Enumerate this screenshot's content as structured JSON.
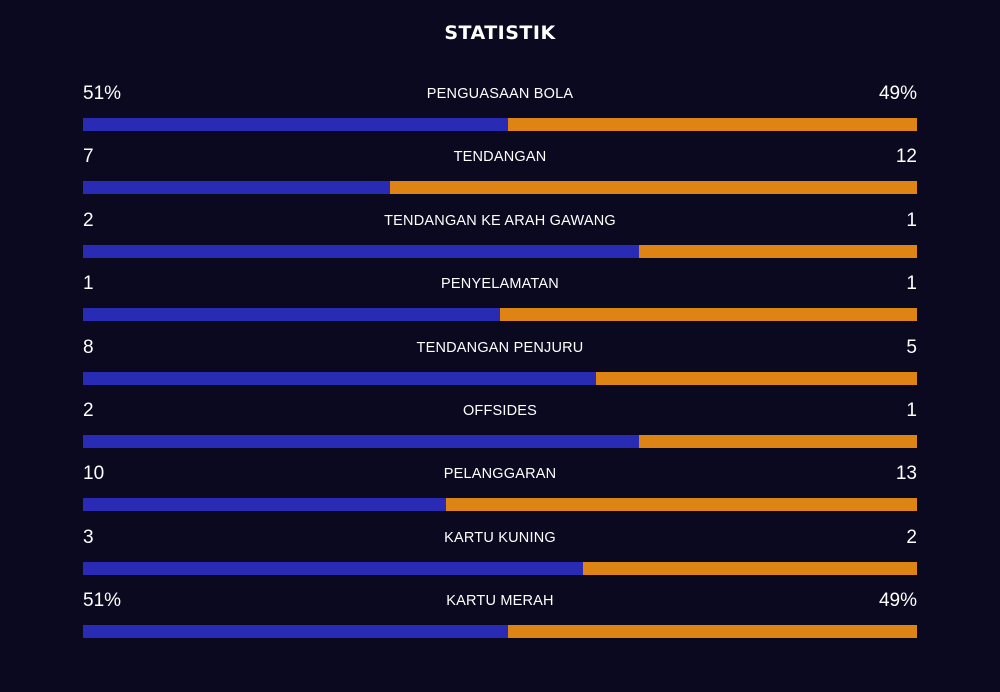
{
  "title": "STATISTIK",
  "colors": {
    "home": "#2a2bb5",
    "away": "#de8414",
    "background": "#0a0920"
  },
  "stats": [
    {
      "label": "PENGUASAAN BOLA",
      "home": "51%",
      "away": "49%",
      "home_share": 0.51
    },
    {
      "label": "TENDANGAN",
      "home": "7",
      "away": "12",
      "home_share": 0.368
    },
    {
      "label": "TENDANGAN KE ARAH GAWANG",
      "home": "2",
      "away": "1",
      "home_share": 0.667
    },
    {
      "label": "PENYELAMATAN",
      "home": "1",
      "away": "1",
      "home_share": 0.5
    },
    {
      "label": "TENDANGAN PENJURU",
      "home": "8",
      "away": "5",
      "home_share": 0.615
    },
    {
      "label": "OFFSIDES",
      "home": "2",
      "away": "1",
      "home_share": 0.667
    },
    {
      "label": "PELANGGARAN",
      "home": "10",
      "away": "13",
      "home_share": 0.435
    },
    {
      "label": "KARTU KUNING",
      "home": "3",
      "away": "2",
      "home_share": 0.6
    },
    {
      "label": "KARTU MERAH",
      "home": "51%",
      "away": "49%",
      "home_share": 0.51
    }
  ]
}
